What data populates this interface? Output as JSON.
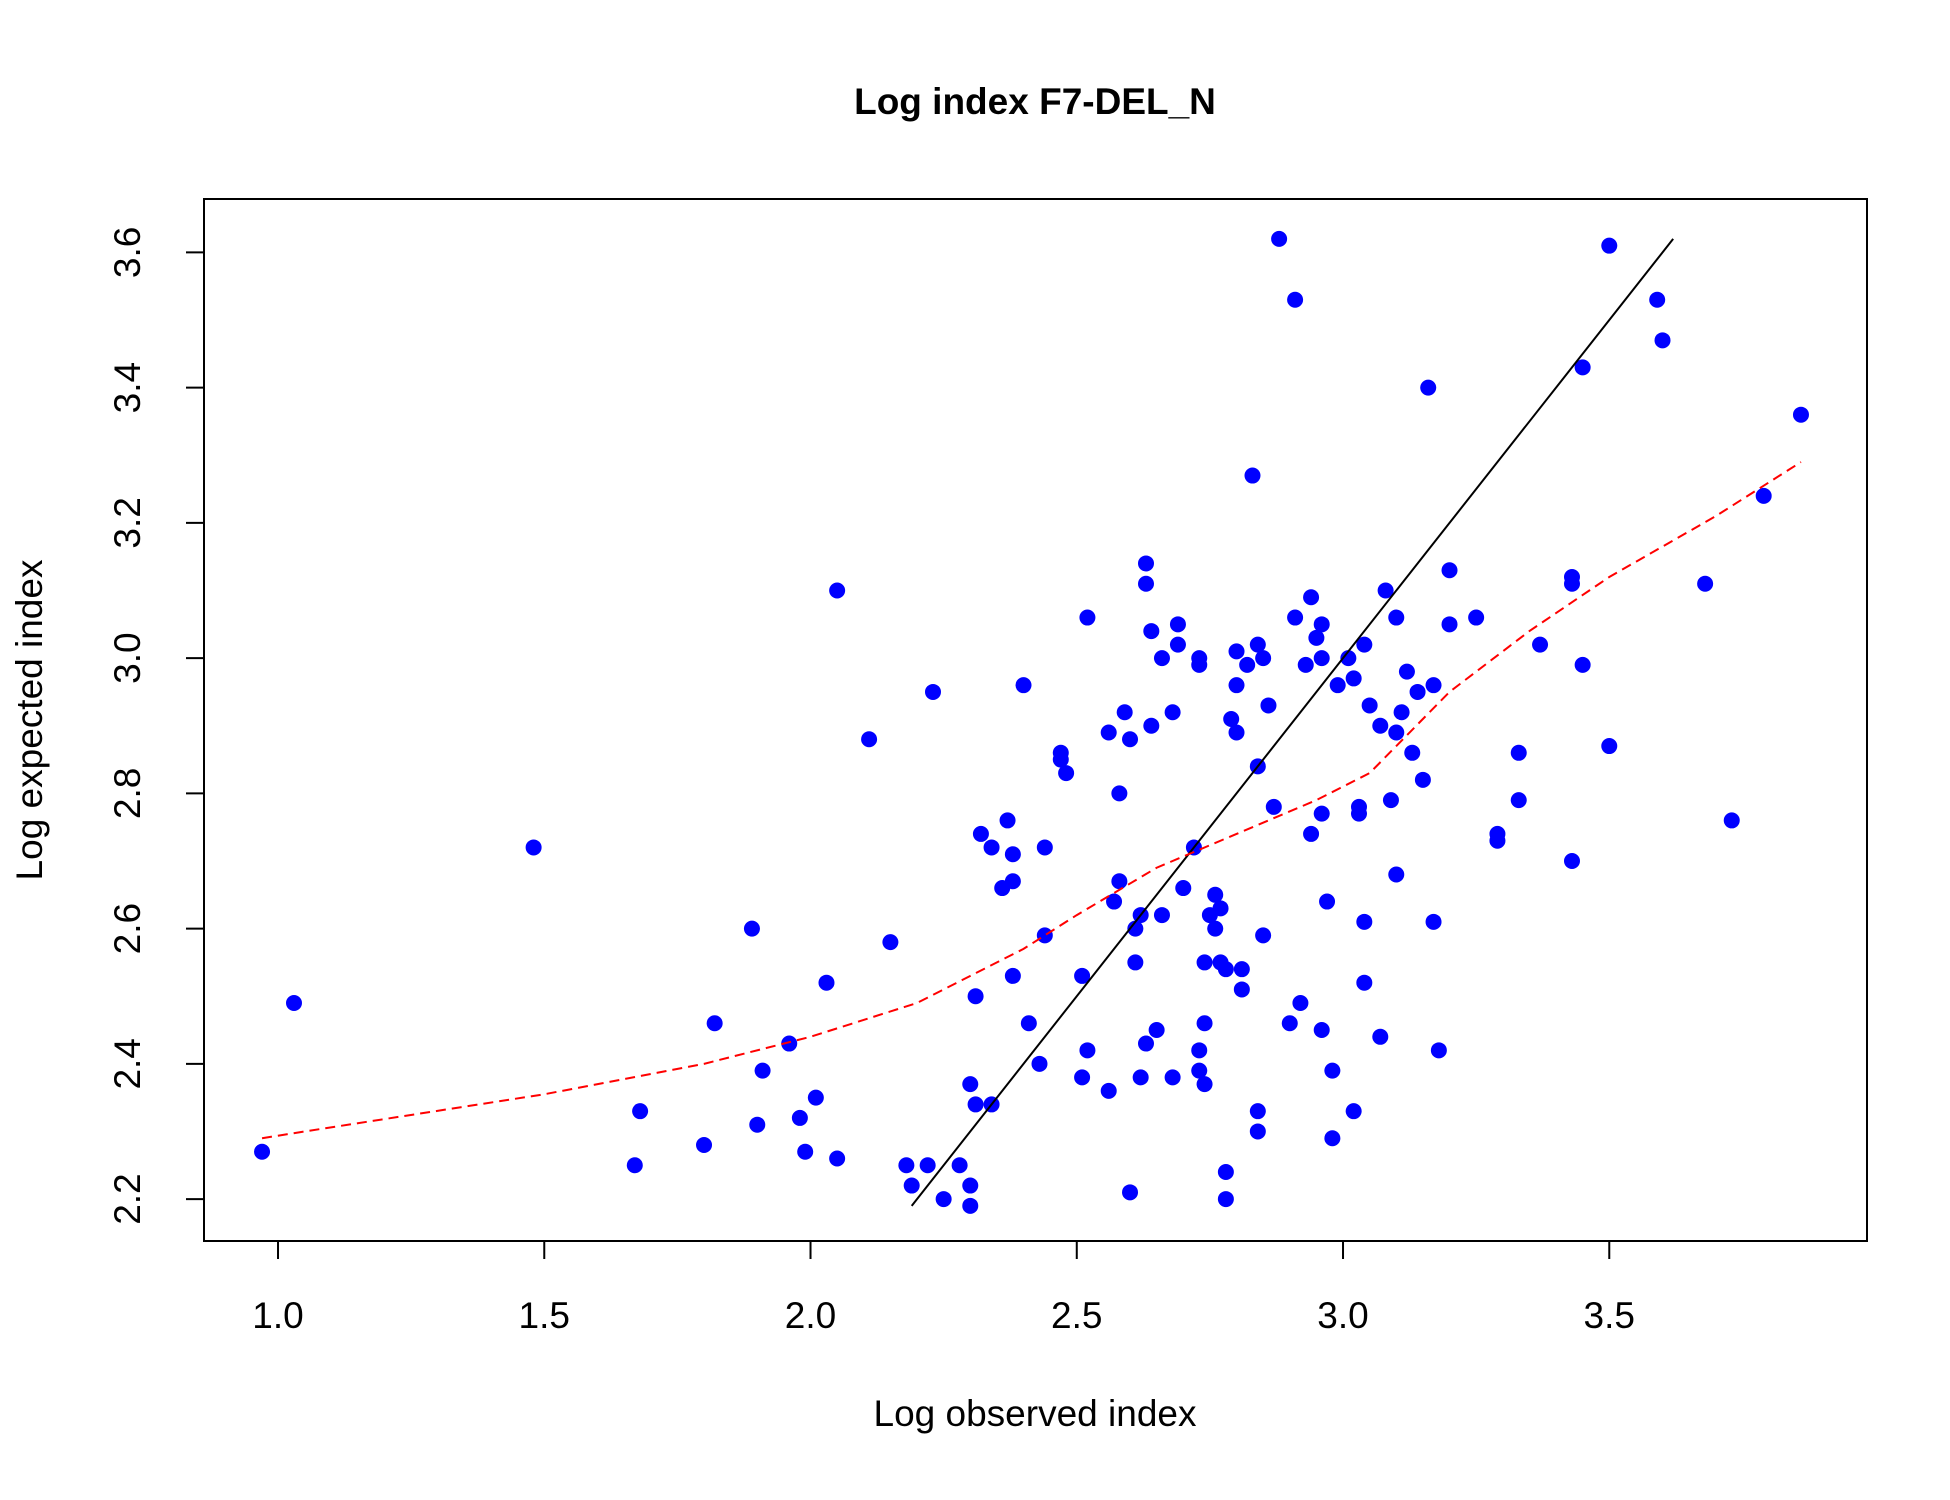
{
  "chart_data": {
    "type": "scatter",
    "title": "Log index F7-DEL_N",
    "x_label": "Log observed index",
    "y_label": "Log expected index",
    "xlim": [
      0.861,
      3.984
    ],
    "ylim": [
      2.138,
      3.679
    ],
    "xticks": [
      {
        "value": 1.0,
        "label": "1.0"
      },
      1.5,
      {
        "value": 2.0,
        "label": "2.0"
      },
      2.5,
      {
        "value": 3.0,
        "label": "3.0"
      },
      3.5
    ],
    "yticks": [
      2.2,
      2.4,
      2.6,
      2.8,
      {
        "value": 3.0,
        "label": "3.0"
      },
      3.2,
      3.4,
      3.6
    ],
    "series": [
      {
        "kind": "points",
        "color": "#0000ff",
        "x": [
          0.97,
          1.03,
          1.48,
          1.67,
          1.68,
          1.8,
          1.82,
          1.89,
          1.9,
          1.91,
          1.96,
          1.98,
          1.99,
          2.01,
          2.03,
          2.05,
          2.05,
          2.11,
          2.15,
          2.18,
          2.19,
          2.22,
          2.23,
          2.25,
          2.28,
          2.3,
          2.3,
          2.3,
          2.31,
          2.31,
          2.32,
          2.34,
          2.34,
          2.36,
          2.37,
          2.38,
          2.38,
          2.38,
          2.4,
          2.41,
          2.43,
          2.44,
          2.44,
          2.47,
          2.47,
          2.48,
          2.51,
          2.51,
          2.52,
          2.52,
          2.56,
          2.56,
          2.57,
          2.58,
          2.58,
          2.59,
          2.6,
          2.6,
          2.61,
          2.61,
          2.62,
          2.62,
          2.63,
          2.63,
          2.63,
          2.64,
          2.64,
          2.65,
          2.66,
          2.66,
          2.68,
          2.68,
          2.69,
          2.69,
          2.7,
          2.72,
          2.73,
          2.73,
          2.73,
          2.73,
          2.74,
          2.74,
          2.74,
          2.75,
          2.76,
          2.76,
          2.77,
          2.77,
          2.78,
          2.78,
          2.78,
          2.79,
          2.8,
          2.8,
          2.8,
          2.81,
          2.81,
          2.82,
          2.83,
          2.84,
          2.84,
          2.84,
          2.84,
          2.85,
          2.85,
          2.86,
          2.87,
          2.88,
          2.9,
          2.91,
          2.91,
          2.92,
          2.93,
          2.94,
          2.94,
          2.95,
          2.96,
          2.96,
          2.96,
          2.96,
          2.97,
          2.98,
          2.98,
          2.99,
          3.01,
          3.02,
          3.02,
          3.03,
          3.03,
          3.04,
          3.04,
          3.04,
          3.05,
          3.07,
          3.07,
          3.08,
          3.09,
          3.1,
          3.1,
          3.1,
          3.11,
          3.12,
          3.13,
          3.14,
          3.15,
          3.16,
          3.17,
          3.17,
          3.18,
          3.2,
          3.2,
          3.25,
          3.29,
          3.29,
          3.33,
          3.33,
          3.37,
          3.43,
          3.43,
          3.43,
          3.45,
          3.45,
          3.5,
          3.5,
          3.59,
          3.6,
          3.68,
          3.73,
          3.79,
          3.86
        ],
        "y": [
          2.27,
          2.49,
          2.72,
          2.25,
          2.33,
          2.28,
          2.46,
          2.6,
          2.31,
          2.39,
          2.43,
          2.32,
          2.27,
          2.35,
          2.52,
          2.26,
          3.1,
          2.88,
          2.58,
          2.25,
          2.22,
          2.25,
          2.95,
          2.2,
          2.25,
          2.22,
          2.19,
          2.37,
          2.34,
          2.5,
          2.74,
          2.34,
          2.72,
          2.66,
          2.76,
          2.71,
          2.67,
          2.53,
          2.96,
          2.46,
          2.4,
          2.72,
          2.59,
          2.85,
          2.86,
          2.83,
          2.53,
          2.38,
          3.06,
          2.42,
          2.36,
          2.89,
          2.64,
          2.67,
          2.8,
          2.92,
          2.88,
          2.21,
          2.6,
          2.55,
          2.62,
          2.38,
          3.14,
          3.11,
          2.43,
          3.04,
          2.9,
          2.45,
          2.62,
          3.0,
          2.92,
          2.38,
          3.02,
          3.05,
          2.66,
          2.72,
          3.0,
          2.99,
          2.39,
          2.42,
          2.37,
          2.46,
          2.55,
          2.62,
          2.65,
          2.6,
          2.55,
          2.63,
          2.54,
          2.24,
          2.2,
          2.91,
          3.01,
          2.96,
          2.89,
          2.54,
          2.51,
          2.99,
          3.27,
          3.02,
          2.84,
          2.33,
          2.3,
          3.0,
          2.59,
          2.93,
          2.78,
          3.62,
          2.46,
          3.06,
          3.53,
          2.49,
          2.99,
          3.09,
          2.74,
          3.03,
          3.05,
          3.0,
          2.77,
          2.45,
          2.64,
          2.29,
          2.39,
          2.96,
          3.0,
          2.97,
          2.33,
          2.78,
          2.77,
          3.02,
          2.52,
          2.61,
          2.93,
          2.9,
          2.44,
          3.1,
          2.79,
          3.06,
          2.89,
          2.68,
          2.92,
          2.98,
          2.86,
          2.95,
          2.82,
          3.4,
          2.96,
          2.61,
          2.42,
          3.13,
          3.05,
          3.06,
          2.74,
          2.73,
          2.86,
          2.79,
          3.02,
          3.12,
          3.11,
          2.7,
          3.43,
          2.99,
          3.61,
          2.87,
          3.53,
          3.47,
          3.11,
          2.76,
          3.24,
          3.36
        ]
      },
      {
        "kind": "line",
        "color": "#000000",
        "dash": false,
        "x": [
          2.19,
          3.62
        ],
        "y": [
          2.19,
          3.62
        ]
      },
      {
        "kind": "line",
        "color": "#ff0000",
        "dash": true,
        "x": [
          0.97,
          1.05,
          1.5,
          1.8,
          2.0,
          2.2,
          2.4,
          2.5,
          2.65,
          2.8,
          2.95,
          3.05,
          3.1,
          3.2,
          3.35,
          3.5,
          3.7,
          3.86
        ],
        "y": [
          2.29,
          2.3,
          2.355,
          2.4,
          2.44,
          2.49,
          2.57,
          2.62,
          2.69,
          2.74,
          2.79,
          2.83,
          2.87,
          2.95,
          3.04,
          3.12,
          3.21,
          3.29
        ]
      }
    ]
  }
}
